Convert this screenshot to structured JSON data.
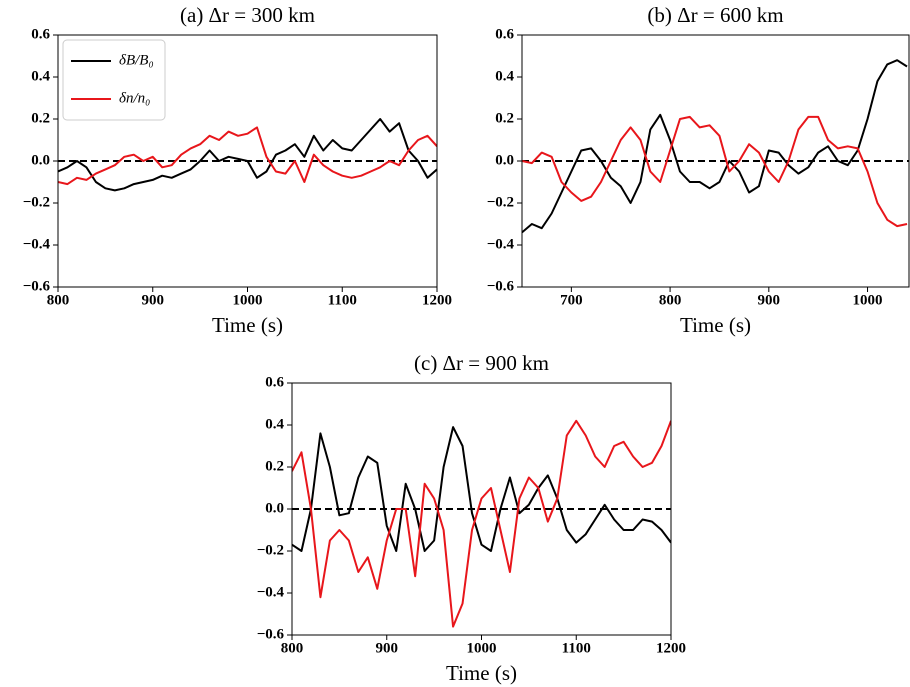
{
  "chart_data": [
    {
      "type": "line",
      "title": "(a) Δr = 300 km",
      "x_label": "Time (s)",
      "x": [
        800,
        810,
        820,
        830,
        840,
        850,
        860,
        870,
        880,
        890,
        900,
        910,
        920,
        930,
        940,
        950,
        960,
        970,
        980,
        990,
        1000,
        1010,
        1020,
        1030,
        1040,
        1050,
        1060,
        1070,
        1080,
        1090,
        1100,
        1110,
        1120,
        1130,
        1140,
        1150,
        1160,
        1170,
        1180,
        1190,
        1200
      ],
      "series": [
        {
          "name": "δB/B₀",
          "color": "#000000",
          "values": [
            -0.05,
            -0.03,
            0.0,
            -0.03,
            -0.1,
            -0.13,
            -0.14,
            -0.13,
            -0.11,
            -0.1,
            -0.09,
            -0.07,
            -0.08,
            -0.06,
            -0.04,
            0.0,
            0.05,
            0.0,
            0.02,
            0.01,
            0.0,
            -0.08,
            -0.05,
            0.03,
            0.05,
            0.08,
            0.02,
            0.12,
            0.05,
            0.1,
            0.06,
            0.05,
            0.1,
            0.15,
            0.2,
            0.14,
            0.18,
            0.05,
            0.0,
            -0.08,
            -0.04
          ]
        },
        {
          "name": "δn/n₀",
          "color": "#e8161b",
          "values": [
            -0.1,
            -0.11,
            -0.08,
            -0.09,
            -0.06,
            -0.04,
            -0.02,
            0.02,
            0.03,
            0.0,
            0.02,
            -0.03,
            -0.02,
            0.03,
            0.06,
            0.08,
            0.12,
            0.1,
            0.14,
            0.12,
            0.13,
            0.16,
            0.02,
            -0.05,
            -0.06,
            0.0,
            -0.1,
            0.03,
            -0.02,
            -0.05,
            -0.07,
            -0.08,
            -0.07,
            -0.05,
            -0.03,
            0.0,
            -0.02,
            0.05,
            0.1,
            0.12,
            0.07
          ]
        }
      ],
      "hline": 0,
      "legend": "upper left",
      "xlim": [
        800,
        1200
      ],
      "xticks": [
        800,
        900,
        1000,
        1100,
        1200
      ],
      "ylim": [
        -0.6,
        0.6
      ],
      "yticks": [
        {
          "value": -0.6,
          "label": "−0.6"
        },
        {
          "value": -0.4,
          "label": "−0.4"
        },
        {
          "value": -0.2,
          "label": "−0.2"
        },
        {
          "value": 0,
          "label": "0.0"
        },
        0.2,
        0.4,
        0.6
      ]
    },
    {
      "type": "line",
      "title": "(b) Δr = 600 km",
      "x_label": "Time (s)",
      "x": [
        650,
        660,
        670,
        680,
        690,
        700,
        710,
        720,
        730,
        740,
        750,
        760,
        770,
        780,
        790,
        800,
        810,
        820,
        830,
        840,
        850,
        860,
        870,
        880,
        890,
        900,
        910,
        920,
        930,
        940,
        950,
        960,
        970,
        980,
        990,
        1000,
        1010,
        1020,
        1030,
        1040
      ],
      "series": [
        {
          "color": "#000000",
          "values": [
            -0.34,
            -0.3,
            -0.32,
            -0.25,
            -0.15,
            -0.05,
            0.05,
            0.06,
            0.0,
            -0.08,
            -0.12,
            -0.2,
            -0.1,
            0.15,
            0.22,
            0.1,
            -0.05,
            -0.1,
            -0.1,
            -0.13,
            -0.1,
            0.0,
            -0.05,
            -0.15,
            -0.12,
            0.05,
            0.04,
            -0.02,
            -0.06,
            -0.03,
            0.04,
            0.07,
            0.0,
            -0.02,
            0.05,
            0.2,
            0.38,
            0.46,
            0.48,
            0.45
          ]
        },
        {
          "color": "#e8161b",
          "values": [
            0.0,
            -0.01,
            0.04,
            0.02,
            -0.1,
            -0.15,
            -0.19,
            -0.17,
            -0.1,
            0.0,
            0.1,
            0.16,
            0.1,
            -0.05,
            -0.1,
            0.05,
            0.2,
            0.21,
            0.16,
            0.17,
            0.12,
            -0.05,
            0.0,
            0.08,
            0.04,
            -0.05,
            -0.1,
            0.0,
            0.15,
            0.21,
            0.21,
            0.1,
            0.06,
            0.07,
            0.06,
            -0.05,
            -0.2,
            -0.28,
            -0.31,
            -0.3
          ]
        }
      ],
      "hline": 0,
      "xlim": [
        650,
        1042
      ],
      "xticks": [
        700,
        800,
        900,
        1000
      ],
      "ylim": [
        -0.6,
        0.6
      ],
      "yticks": [
        {
          "value": -0.6,
          "label": "−0.6"
        },
        {
          "value": -0.4,
          "label": "−0.4"
        },
        {
          "value": -0.2,
          "label": "−0.2"
        },
        {
          "value": 0,
          "label": "0.0"
        },
        0.2,
        0.4,
        0.6
      ]
    },
    {
      "type": "line",
      "title": "(c) Δr = 900 km",
      "x_label": "Time (s)",
      "x": [
        800,
        810,
        820,
        830,
        840,
        850,
        860,
        870,
        880,
        890,
        900,
        910,
        920,
        930,
        940,
        950,
        960,
        970,
        980,
        990,
        1000,
        1010,
        1020,
        1030,
        1040,
        1050,
        1060,
        1070,
        1080,
        1090,
        1100,
        1110,
        1120,
        1130,
        1140,
        1150,
        1160,
        1170,
        1180,
        1190,
        1200
      ],
      "series": [
        {
          "color": "#000000",
          "values": [
            -0.17,
            -0.2,
            0.0,
            0.36,
            0.2,
            -0.03,
            -0.02,
            0.15,
            0.25,
            0.22,
            -0.08,
            -0.2,
            0.12,
            0.0,
            -0.2,
            -0.15,
            0.2,
            0.39,
            0.3,
            -0.02,
            -0.17,
            -0.2,
            0.0,
            0.15,
            -0.02,
            0.02,
            0.1,
            0.16,
            0.05,
            -0.1,
            -0.16,
            -0.12,
            -0.05,
            0.02,
            -0.05,
            -0.1,
            -0.1,
            -0.05,
            -0.06,
            -0.1,
            -0.16
          ]
        },
        {
          "color": "#e8161b",
          "values": [
            0.18,
            0.27,
            0.0,
            -0.42,
            -0.15,
            -0.1,
            -0.15,
            -0.3,
            -0.23,
            -0.38,
            -0.15,
            0.0,
            0.0,
            -0.32,
            0.12,
            0.05,
            -0.1,
            -0.56,
            -0.45,
            -0.1,
            0.05,
            0.1,
            -0.1,
            -0.3,
            0.05,
            0.15,
            0.1,
            -0.06,
            0.05,
            0.35,
            0.42,
            0.35,
            0.25,
            0.2,
            0.3,
            0.32,
            0.25,
            0.2,
            0.22,
            0.3,
            0.42
          ]
        }
      ],
      "hline": 0,
      "xlim": [
        800,
        1200
      ],
      "xticks": [
        800,
        900,
        1000,
        1100,
        1200
      ],
      "ylim": [
        -0.6,
        0.6
      ],
      "yticks": [
        {
          "value": -0.6,
          "label": "−0.6"
        },
        {
          "value": -0.4,
          "label": "−0.4"
        },
        {
          "value": -0.2,
          "label": "−0.2"
        },
        {
          "value": 0,
          "label": "0.0"
        },
        0.2,
        0.4,
        0.6
      ]
    }
  ]
}
